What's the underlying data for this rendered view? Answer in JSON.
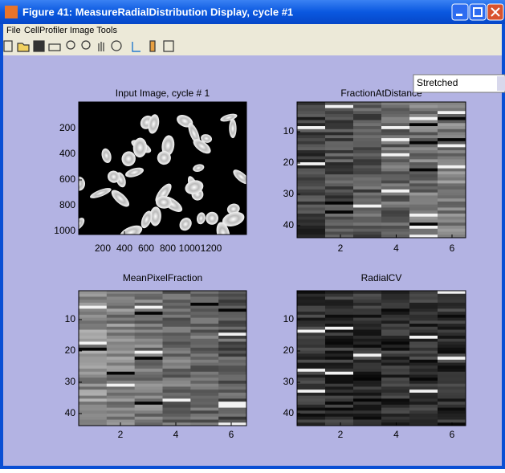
{
  "window": {
    "title": "Figure 41: MeasureRadialDistribution Display, cycle #1"
  },
  "menu": [
    "File",
    "CellProfiler Image Tools"
  ],
  "dropdown": "Stretched",
  "panels": [
    {
      "title": "Input Image, cycle # 1",
      "xticks": [
        200,
        400,
        600,
        800,
        1000,
        1200
      ],
      "yticks": [
        200,
        400,
        600,
        800,
        1000
      ]
    },
    {
      "title": "FractionAtDistance",
      "xticks": [
        2,
        4,
        6
      ],
      "yticks": [
        10,
        20,
        30,
        40
      ]
    },
    {
      "title": "MeanPixelFraction",
      "xticks": [
        2,
        4,
        6
      ],
      "yticks": [
        10,
        20,
        30,
        40
      ]
    },
    {
      "title": "RadialCV",
      "xticks": [
        2,
        4,
        6
      ],
      "yticks": [
        10,
        20,
        30,
        40
      ]
    }
  ]
}
